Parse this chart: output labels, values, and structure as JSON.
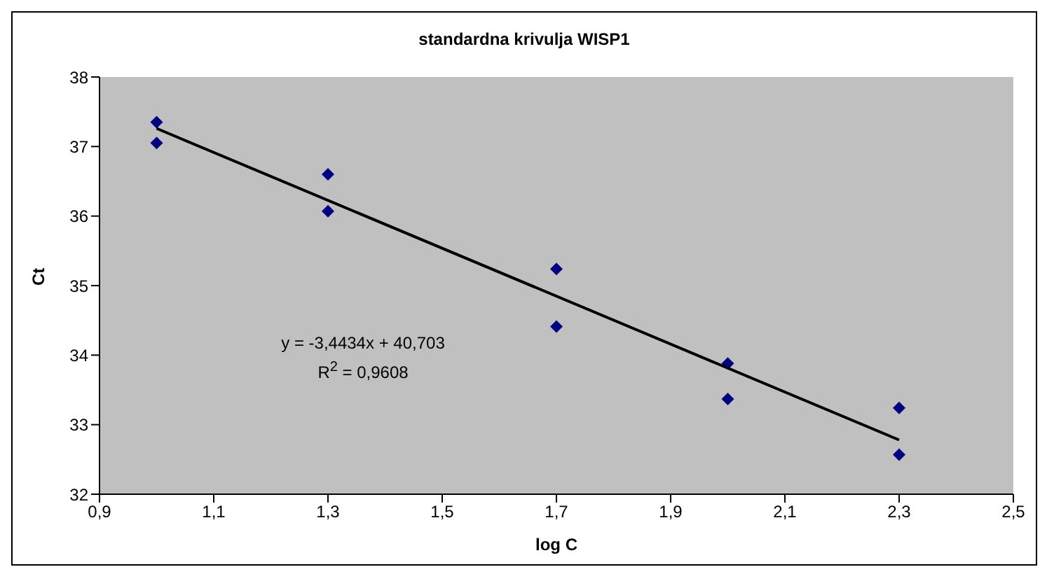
{
  "chart_data": {
    "type": "scatter",
    "title": "standardna krivulja WISP1",
    "xlabel": "log C",
    "ylabel": "Ct",
    "annotations": [
      "y = -3,4434x + 40,703",
      "R$^{2}$ = 0,9608"
    ],
    "series": [
      {
        "color": "#000080",
        "marker": "diamond",
        "x": [
          1,
          1,
          1.3,
          1.3,
          1.7,
          1.7,
          2,
          2,
          2.3,
          2.3
        ],
        "values": [
          37.35,
          37.05,
          36.6,
          36.07,
          35.24,
          34.41,
          33.88,
          33.37,
          33.24,
          32.57
        ]
      },
      {
        "type": "line",
        "color": "#000000",
        "marker": "none",
        "line_style": "solid",
        "x": [
          1,
          2.3
        ],
        "values": [
          37.26,
          32.78
        ]
      }
    ],
    "xlim": [
      0.9,
      2.5
    ],
    "xticks": [
      {
        "value": 0.9,
        "label": "0,9"
      },
      {
        "value": 1.1,
        "label": "1,1"
      },
      {
        "value": 1.3,
        "label": "1,3"
      },
      {
        "value": 1.5,
        "label": "1,5"
      },
      {
        "value": 1.7,
        "label": "1,7"
      },
      {
        "value": 1.9,
        "label": "1,9"
      },
      {
        "value": 2.1,
        "label": "2,1"
      },
      {
        "value": 2.3,
        "label": "2,3"
      },
      {
        "value": 2.5,
        "label": "2,5"
      }
    ],
    "ylim": [
      32,
      38
    ],
    "yticks": [
      32,
      33,
      34,
      35,
      36,
      37,
      38
    ],
    "grid": false,
    "legend": false
  }
}
